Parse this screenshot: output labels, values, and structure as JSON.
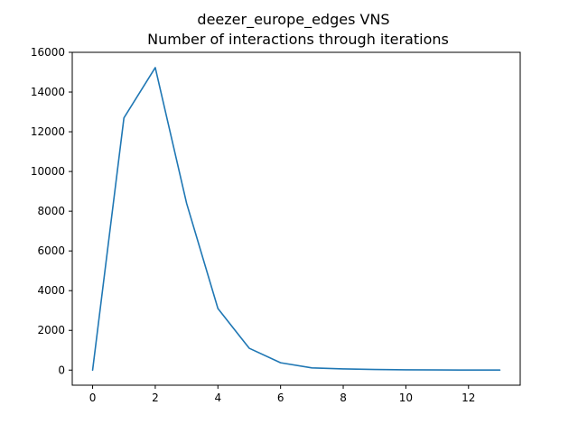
{
  "chart_data": {
    "type": "line",
    "title": "deezer_europe_edges VNS",
    "subtitle": "Number of interactions through iterations",
    "xlabel": "",
    "ylabel": "",
    "xlim": [
      -0.65,
      13.65
    ],
    "ylim": [
      -760,
      16000
    ],
    "x_ticks": [
      0,
      2,
      4,
      6,
      8,
      10,
      12
    ],
    "y_ticks": [
      0,
      2000,
      4000,
      6000,
      8000,
      10000,
      12000,
      14000,
      16000
    ],
    "grid": false,
    "legend": "none",
    "series": [
      {
        "color": "#1f77b4",
        "x": [
          0,
          1,
          2,
          3,
          4,
          5,
          6,
          7,
          8,
          9,
          10,
          11,
          12,
          13
        ],
        "y": [
          0,
          12700,
          15230,
          8400,
          3100,
          1100,
          370,
          110,
          60,
          30,
          15,
          8,
          5,
          3
        ]
      }
    ]
  }
}
